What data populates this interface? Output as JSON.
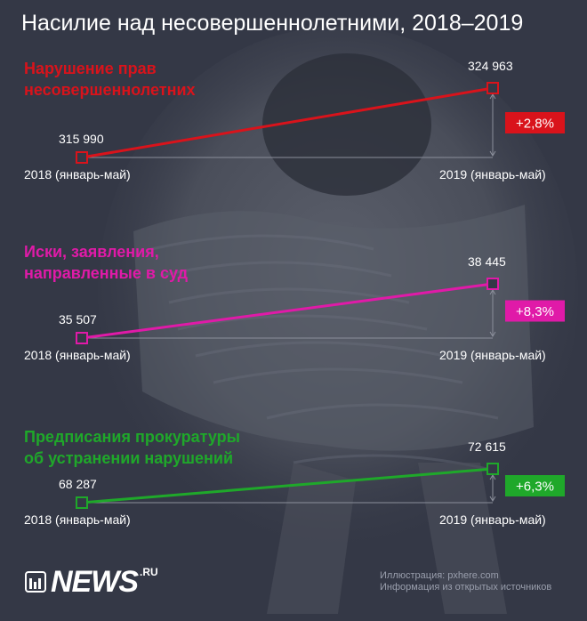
{
  "page": {
    "title": "Насилие над несовершеннолетними, 2018–2019"
  },
  "chart_data": [
    {
      "type": "line",
      "title": "Нарушение прав несовершеннолетних",
      "title_lines": [
        "Нарушение прав",
        "несовершеннолетних"
      ],
      "x": [
        "2018 (январь-май)",
        "2019 (январь-май)"
      ],
      "values": [
        315990,
        324963
      ],
      "value_labels": [
        "315 990",
        "324 963"
      ],
      "change": "+2,8%",
      "color": "#d9131b"
    },
    {
      "type": "line",
      "title": "Иски, заявления, направленные в суд",
      "title_lines": [
        "Иски, заявления,",
        "направленные в суд"
      ],
      "x": [
        "2018 (январь-май)",
        "2019 (январь-май)"
      ],
      "values": [
        35507,
        38445
      ],
      "value_labels": [
        "35 507",
        "38 445"
      ],
      "change": "+8,3%",
      "color": "#e01aa8"
    },
    {
      "type": "line",
      "title": "Предписания прокуратуры об устранении нарушений",
      "title_lines": [
        "Предписания прокуратуры",
        "об устранении нарушений"
      ],
      "x": [
        "2018 (январь-май)",
        "2019 (январь-май)"
      ],
      "values": [
        68287,
        72615
      ],
      "value_labels": [
        "68 287",
        "72 615"
      ],
      "change": "+6,3%",
      "color": "#1fa82a"
    }
  ],
  "footer": {
    "logo_text": "NEWS",
    "logo_tld": ".RU",
    "credit_illustration": "Иллюстрация: pxhere.com",
    "credit_source": "Информация из открытых источников"
  }
}
